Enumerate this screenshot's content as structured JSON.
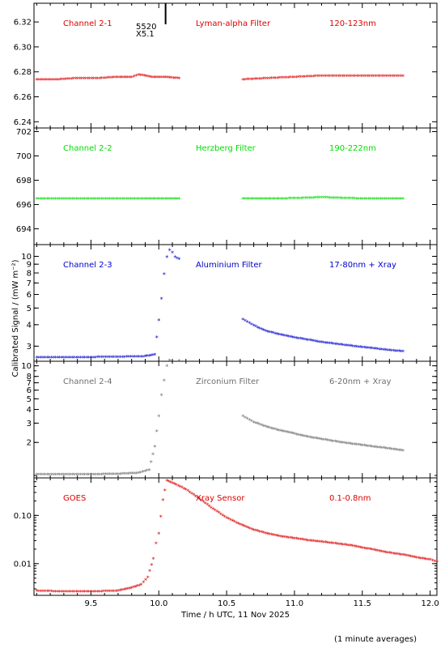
{
  "chart_data": {
    "type": "scatter",
    "xlabel": "Time / h UTC, 11 Nov 2025",
    "ylabel": "Calibrated Signal / (mW m⁻²)",
    "footnote": "(1 minute averages)",
    "xlim": [
      9.08,
      12.05
    ],
    "xticks": [
      9.5,
      10.0,
      10.5,
      11.0,
      11.5,
      12.0
    ],
    "xtick_labels": [
      "9.5",
      "10.0",
      "10.5",
      "11.0",
      "11.5",
      "12.0"
    ],
    "marker": "*",
    "panels": [
      {
        "channel": "Channel 2-1",
        "filter": "Lyman-alpha Filter",
        "band": "120-123nm",
        "color": "#dd0000",
        "scale": "linear",
        "ylim": [
          6.235,
          6.335
        ],
        "yticks": [
          6.24,
          6.26,
          6.28,
          6.3,
          6.32
        ],
        "ytick_labels": [
          "6.24",
          "6.26",
          "6.28",
          "6.30",
          "6.32"
        ],
        "annotation": [
          "5520",
          "X5.1"
        ],
        "annotation_x": 10.05,
        "gap": [
          10.16,
          10.62
        ],
        "data": {
          "x": [
            9.1,
            9.25,
            9.4,
            9.55,
            9.7,
            9.8,
            9.85,
            9.95,
            10.05,
            10.15,
            10.62,
            10.8,
            11.0,
            11.2,
            11.4,
            11.6,
            11.8
          ],
          "y": [
            6.273,
            6.273,
            6.274,
            6.274,
            6.275,
            6.275,
            6.277,
            6.275,
            6.275,
            6.274,
            6.273,
            6.274,
            6.275,
            6.276,
            6.276,
            6.276,
            6.276
          ]
        }
      },
      {
        "channel": "Channel 2-2",
        "filter": "Herzberg Filter",
        "band": "190-222nm",
        "color": "#00dd00",
        "scale": "linear",
        "ylim": [
          692.7,
          702.3
        ],
        "yticks": [
          694,
          696,
          698,
          700,
          702
        ],
        "ytick_labels": [
          "694",
          "696",
          "698",
          "700",
          "702"
        ],
        "gap": [
          10.16,
          10.62
        ],
        "data": {
          "x": [
            9.1,
            9.3,
            9.5,
            9.7,
            9.9,
            10.15,
            10.62,
            10.9,
            11.2,
            11.5,
            11.8
          ],
          "y": [
            696.4,
            696.4,
            696.4,
            696.4,
            696.4,
            696.4,
            696.4,
            696.4,
            696.5,
            696.4,
            696.4
          ]
        }
      },
      {
        "channel": "Channel 2-3",
        "filter": "Aluminium Filter",
        "band": "17-80nm + Xray",
        "color": "#0000cc",
        "scale": "log",
        "ylim": [
          2.45,
          11.7
        ],
        "yticks": [
          3,
          4,
          5,
          6,
          7,
          8,
          9,
          10
        ],
        "ytick_labels": [
          "3",
          "4",
          "5",
          "6",
          "7",
          "8",
          "9",
          "10"
        ],
        "gap": [
          10.16,
          10.62
        ],
        "data": {
          "x": [
            9.1,
            9.3,
            9.5,
            9.7,
            9.9,
            9.97,
            10.0,
            10.02,
            10.04,
            10.06,
            10.08,
            10.1,
            10.12,
            10.15,
            10.62,
            10.7,
            10.8,
            10.9,
            11.0,
            11.1,
            11.2,
            11.3,
            11.4,
            11.5,
            11.6,
            11.7,
            11.8
          ],
          "y": [
            2.55,
            2.55,
            2.55,
            2.56,
            2.58,
            2.65,
            4.2,
            5.6,
            7.8,
            9.8,
            10.7,
            10.4,
            9.8,
            9.5,
            4.25,
            3.9,
            3.6,
            3.45,
            3.32,
            3.22,
            3.12,
            3.05,
            2.98,
            2.92,
            2.86,
            2.8,
            2.76
          ]
        }
      },
      {
        "channel": "Channel 2-4",
        "filter": "Zirconium Filter",
        "band": "6-20nm + Xray",
        "color": "#707070",
        "scale": "log",
        "ylim": [
          0.95,
          11.0
        ],
        "yticks": [
          2,
          3,
          4,
          5,
          6,
          7,
          8,
          10
        ],
        "ytick_labels": [
          "2",
          "3",
          "4",
          "5",
          "6",
          "7",
          "8",
          "10"
        ],
        "gap": [
          10.16,
          10.62
        ],
        "data": {
          "x": [
            9.1,
            9.3,
            9.5,
            9.7,
            9.85,
            9.93,
            9.97,
            10.0,
            10.02,
            10.04,
            10.06,
            10.08,
            10.12,
            10.15,
            10.62,
            10.7,
            10.8,
            10.9,
            11.0,
            11.1,
            11.2,
            11.3,
            11.4,
            11.5,
            11.6,
            11.7,
            11.8
          ],
          "y": [
            1.0,
            1.0,
            1.0,
            1.01,
            1.03,
            1.1,
            1.8,
            3.4,
            5.3,
            7.2,
            9.8,
            11.0,
            11.3,
            10.9,
            3.4,
            3.0,
            2.7,
            2.5,
            2.35,
            2.2,
            2.1,
            2.0,
            1.92,
            1.85,
            1.78,
            1.72,
            1.65
          ]
        }
      },
      {
        "channel": "GOES",
        "filter": "Xray Sensor",
        "band": "0.1-0.8nm",
        "color": "#dd0000",
        "scale": "log",
        "ylim": [
          0.0022,
          0.6
        ],
        "yticks": [
          0.01,
          0.1
        ],
        "ytick_labels": [
          "0.01",
          "0.10"
        ],
        "data": {
          "x": [
            9.1,
            9.3,
            9.5,
            9.7,
            9.8,
            9.87,
            9.92,
            9.96,
            9.98,
            10.0,
            10.03,
            10.06,
            10.1,
            10.2,
            10.3,
            10.4,
            10.5,
            10.6,
            10.7,
            10.8,
            10.9,
            11.0,
            11.1,
            11.2,
            11.3,
            11.4,
            11.5,
            11.6,
            11.7,
            11.8,
            11.9,
            12.0,
            12.05
          ],
          "y": [
            0.0026,
            0.0025,
            0.0025,
            0.0026,
            0.003,
            0.0035,
            0.005,
            0.012,
            0.025,
            0.04,
            0.2,
            0.5,
            0.45,
            0.33,
            0.21,
            0.13,
            0.085,
            0.062,
            0.048,
            0.04,
            0.035,
            0.032,
            0.029,
            0.027,
            0.025,
            0.023,
            0.0205,
            0.018,
            0.016,
            0.0145,
            0.0128,
            0.0115,
            0.0105
          ]
        }
      }
    ]
  }
}
